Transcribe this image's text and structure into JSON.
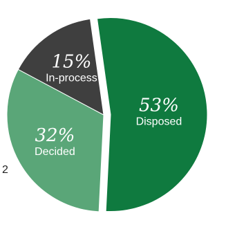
{
  "chart_data": {
    "type": "pie",
    "title": "",
    "slices": [
      {
        "label": "Disposed",
        "value": 53,
        "value_label": "53%",
        "color": "#0f7a3f",
        "exploded": true
      },
      {
        "label": "Decided",
        "value": 32,
        "value_label": "32%",
        "color": "#5aa678",
        "exploded": false
      },
      {
        "label": "In-process",
        "value": 15,
        "value_label": "15%",
        "color": "#3f3f3f",
        "exploded": false
      }
    ],
    "legend": "none",
    "stray_text": "2"
  }
}
